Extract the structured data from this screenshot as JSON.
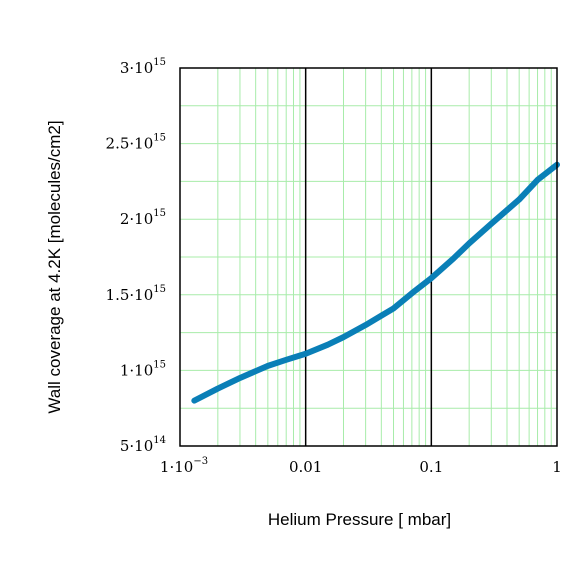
{
  "chart_data": {
    "type": "line",
    "title": "",
    "xlabel": "Helium Pressure [ mbar]",
    "ylabel": "Wall coverage at 4.2K  [molecules/cm2]",
    "x_scale": "log",
    "y_scale": "linear",
    "xlim": [
      0.001,
      1
    ],
    "ylim": [
      500000000000000.0,
      3000000000000000.0
    ],
    "grid": true,
    "legend": "none",
    "colors": {
      "series": "#0a7fb7",
      "minor_grid": "#a8ecaa",
      "major_grid": "#000000"
    },
    "x_ticks": [
      {
        "value": 0.001,
        "label": "1·10",
        "exp": "−3"
      },
      {
        "value": 0.01,
        "label": "0.01",
        "exp": ""
      },
      {
        "value": 0.1,
        "label": "0.1",
        "exp": ""
      },
      {
        "value": 1,
        "label": "1",
        "exp": ""
      }
    ],
    "y_ticks": [
      {
        "value": 500000000000000.0,
        "label": "5·10",
        "exp": "14"
      },
      {
        "value": 1000000000000000.0,
        "label": "1·10",
        "exp": "15"
      },
      {
        "value": 1500000000000000.0,
        "label": "1.5·10",
        "exp": "15"
      },
      {
        "value": 2000000000000000.0,
        "label": "2·10",
        "exp": "15"
      },
      {
        "value": 2500000000000000.0,
        "label": "2.5·10",
        "exp": "15"
      },
      {
        "value": 3000000000000000.0,
        "label": "3·10",
        "exp": "15"
      }
    ],
    "series": [
      {
        "x": [
          0.0013,
          0.002,
          0.003,
          0.005,
          0.007,
          0.01,
          0.015,
          0.02,
          0.03,
          0.05,
          0.07,
          0.1,
          0.15,
          0.2,
          0.3,
          0.5,
          0.7,
          1.0
        ],
        "y": [
          800000000000000.0,
          880000000000000.0,
          950000000000000.0,
          1030000000000000.0,
          1070000000000000.0,
          1110000000000000.0,
          1170000000000000.0,
          1220000000000000.0,
          1300000000000000.0,
          1410000000000000.0,
          1510000000000000.0,
          1610000000000000.0,
          1740000000000000.0,
          1840000000000000.0,
          1970000000000000.0,
          2130000000000000.0,
          2260000000000000.0,
          2360000000000000.0
        ]
      }
    ]
  }
}
